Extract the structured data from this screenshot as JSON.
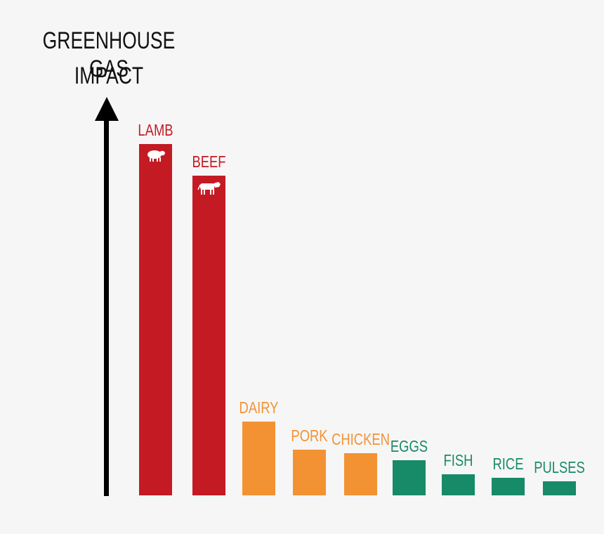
{
  "title_line1": "GREENHOUSE GAS",
  "title_line2": "IMPACT",
  "colors": {
    "high": "#c41a24",
    "medium": "#f39233",
    "low": "#178a68",
    "axis": "#000000",
    "background": "#f6f6f6"
  },
  "chart_data": {
    "type": "bar",
    "title": "GREENHOUSE GAS IMPACT",
    "xlabel": "",
    "ylabel": "GREENHOUSE GAS IMPACT",
    "axis": "single upward arrow, no ticks or numeric scale",
    "grid": false,
    "legend": "none",
    "categories": [
      "LAMB",
      "BEEF",
      "DAIRY",
      "PORK",
      "CHICKEN",
      "EGGS",
      "FISH",
      "RICE",
      "PULSES"
    ],
    "values": [
      100,
      91,
      21,
      13,
      12,
      10,
      6,
      5,
      4
    ],
    "value_units": "relative bar height (% of tallest), estimated from pixels",
    "bar_colors": [
      "#c41a24",
      "#c41a24",
      "#f39233",
      "#f39233",
      "#f39233",
      "#178a68",
      "#178a68",
      "#178a68",
      "#178a68"
    ],
    "bar_icons": [
      "sheep-icon",
      "cow-icon",
      "",
      "",
      "",
      "",
      "",
      "",
      ""
    ]
  }
}
